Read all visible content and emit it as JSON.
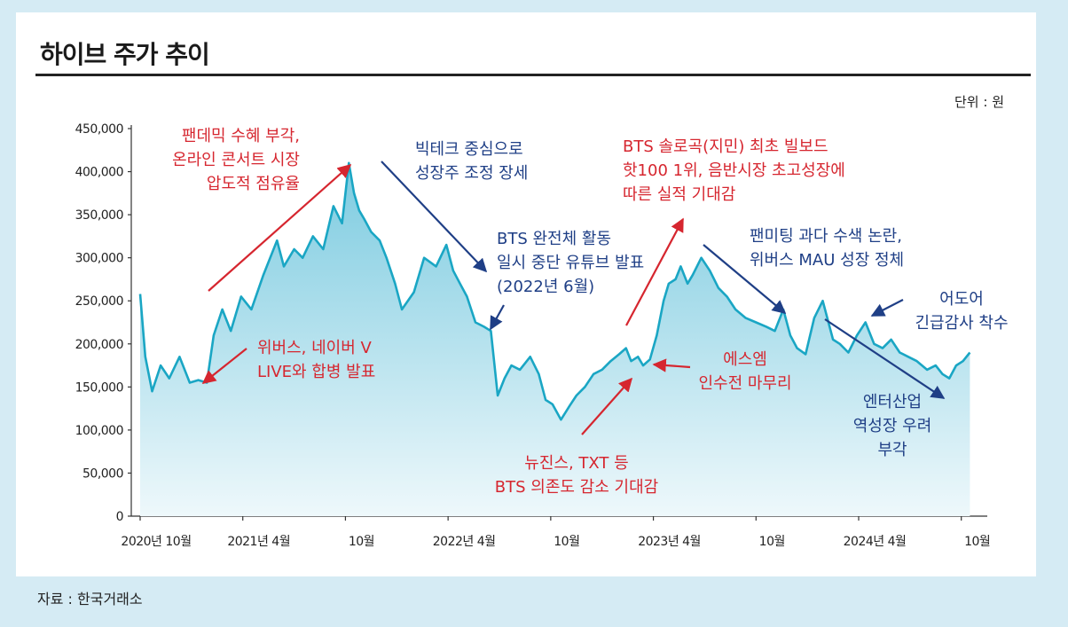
{
  "title": "하이브 주가 추이",
  "unit": "단위 : 원",
  "source": "자료 : 한국거래소",
  "colors": {
    "line": "#1aa6c4",
    "area_top": "#7ccbe0",
    "area_bottom": "#eef8fb",
    "red": "#d6262f",
    "blue": "#1f3f86",
    "background": "#d5ebf4"
  },
  "annotations": {
    "pandemic": [
      "팬데믹 수혜 부각,",
      "온라인 콘서트 시장",
      "압도적 점유율"
    ],
    "bigtech": [
      "빅테크 중심으로",
      "성장주 조정 장세"
    ],
    "bts_hiatus": [
      "BTS 완전체 활동",
      "일시 중단 유튜브 발표",
      "(2022년 6월)"
    ],
    "bts_solo": [
      "BTS 솔로곡(지민) 최초 빌보드",
      "핫100 1위, 음반시장 초고성장에",
      "따른 실적 기대감"
    ],
    "fan_meeting": [
      "팬미팅 과다 수색 논란,",
      "위버스 MAU 성장 정체"
    ],
    "ador": [
      "어도어",
      "긴급감사 착수"
    ],
    "weverse": [
      "위버스, 네이버 V",
      "LIVE와 합병 발표"
    ],
    "sm": [
      "에스엠",
      "인수전 마무리"
    ],
    "newjeans": [
      "뉴진스, TXT 등",
      "BTS 의존도 감소 기대감"
    ],
    "entertainment": [
      "엔터산업",
      "역성장 우려",
      "부각"
    ]
  },
  "chart_data": {
    "type": "area",
    "title": "하이브 주가 추이",
    "xlabel": "",
    "ylabel": "원",
    "ylim": [
      0,
      450000
    ],
    "yticks": [
      0,
      50000,
      100000,
      150000,
      200000,
      250000,
      300000,
      350000,
      400000,
      450000
    ],
    "ytick_labels": [
      "0",
      "50,000",
      "100,000",
      "150,000",
      "200,000",
      "250,000",
      "300,000",
      "350,000",
      "400,000",
      "450,000"
    ],
    "xlim": [
      0,
      49
    ],
    "xticks": [
      0,
      6,
      12,
      18,
      24,
      30,
      36,
      42,
      48
    ],
    "xtick_labels": [
      "2020년 10월",
      "2021년 4월",
      "10월",
      "2022년 4월",
      "10월",
      "2023년 4월",
      "10월",
      "2024년 4월",
      "10월"
    ],
    "series": [
      {
        "name": "하이브 주가",
        "x": [
          0,
          0.3,
          0.7,
          1.2,
          1.7,
          2.3,
          2.9,
          3.4,
          3.9,
          4.3,
          4.8,
          5.3,
          5.9,
          6.5,
          7.2,
          8.0,
          8.4,
          9.0,
          9.5,
          10.1,
          10.7,
          11.3,
          11.8,
          12.2,
          12.5,
          12.8,
          13.1,
          13.5,
          14.0,
          14.4,
          14.9,
          15.3,
          16.0,
          16.6,
          17.3,
          17.9,
          18.3,
          18.7,
          19.1,
          19.6,
          20.1,
          20.5,
          20.9,
          21.3,
          21.7,
          22.2,
          22.8,
          23.3,
          23.7,
          24.1,
          24.6,
          25.1,
          25.5,
          26.0,
          26.5,
          27.0,
          27.5,
          28.0,
          28.4,
          28.7,
          29.1,
          29.4,
          29.8,
          30.2,
          30.6,
          30.9,
          31.3,
          31.6,
          32.0,
          32.3,
          32.8,
          33.3,
          33.8,
          34.3,
          34.8,
          35.4,
          36.0,
          36.6,
          37.1,
          37.6,
          38.0,
          38.4,
          38.9,
          39.4,
          39.9,
          40.5,
          40.9,
          41.4,
          41.9,
          42.4,
          42.9,
          43.4,
          43.9,
          44.4,
          44.9,
          45.4,
          46.0,
          46.5,
          46.9,
          47.3,
          47.7,
          48.1,
          48.5
        ],
        "values": [
          258000,
          185000,
          145000,
          175000,
          160000,
          185000,
          155000,
          158000,
          155000,
          210000,
          240000,
          215000,
          255000,
          240000,
          280000,
          320000,
          290000,
          310000,
          300000,
          325000,
          310000,
          360000,
          340000,
          410000,
          375000,
          355000,
          345000,
          330000,
          320000,
          300000,
          270000,
          240000,
          260000,
          300000,
          290000,
          315000,
          285000,
          270000,
          255000,
          225000,
          220000,
          215000,
          140000,
          160000,
          175000,
          170000,
          185000,
          165000,
          135000,
          130000,
          112000,
          128000,
          140000,
          150000,
          165000,
          170000,
          180000,
          188000,
          195000,
          180000,
          185000,
          175000,
          182000,
          210000,
          250000,
          270000,
          275000,
          290000,
          270000,
          280000,
          300000,
          285000,
          265000,
          255000,
          240000,
          230000,
          225000,
          220000,
          215000,
          240000,
          210000,
          195000,
          188000,
          230000,
          250000,
          205000,
          200000,
          190000,
          210000,
          225000,
          200000,
          195000,
          205000,
          190000,
          185000,
          180000,
          170000,
          175000,
          165000,
          160000,
          175000,
          180000,
          190000
        ]
      }
    ]
  }
}
